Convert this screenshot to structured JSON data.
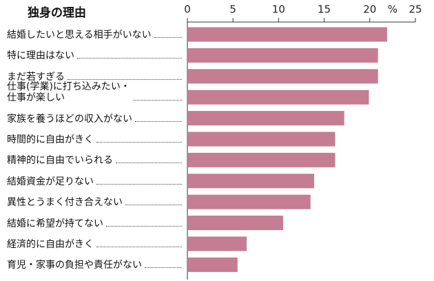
{
  "chart_data": {
    "type": "hbar",
    "title": "独身の理由",
    "unit": "%",
    "categories": [
      "結婚したいと思える相手がいない",
      "特に理由はない",
      "まだ若すぎる",
      "仕事(学業)に打ち込みたい・\n仕事が楽しい",
      "家族を養うほどの収入がない",
      "時間的に自由がきく",
      "精神的に自由でいられる",
      "結婚資金が足りない",
      "異性とうまく付き合えない",
      "結婚に希望が持てない",
      "経済的に自由がきく",
      "育児・家事の負担や責任がない"
    ],
    "values": [
      21.9,
      20.9,
      20.9,
      19.9,
      17.2,
      16.2,
      16.2,
      13.9,
      13.5,
      10.5,
      6.5,
      5.5
    ],
    "color": "#c47d93",
    "xlim": [
      0,
      25
    ],
    "xticks": [
      0,
      5,
      10,
      15,
      20,
      25
    ]
  }
}
